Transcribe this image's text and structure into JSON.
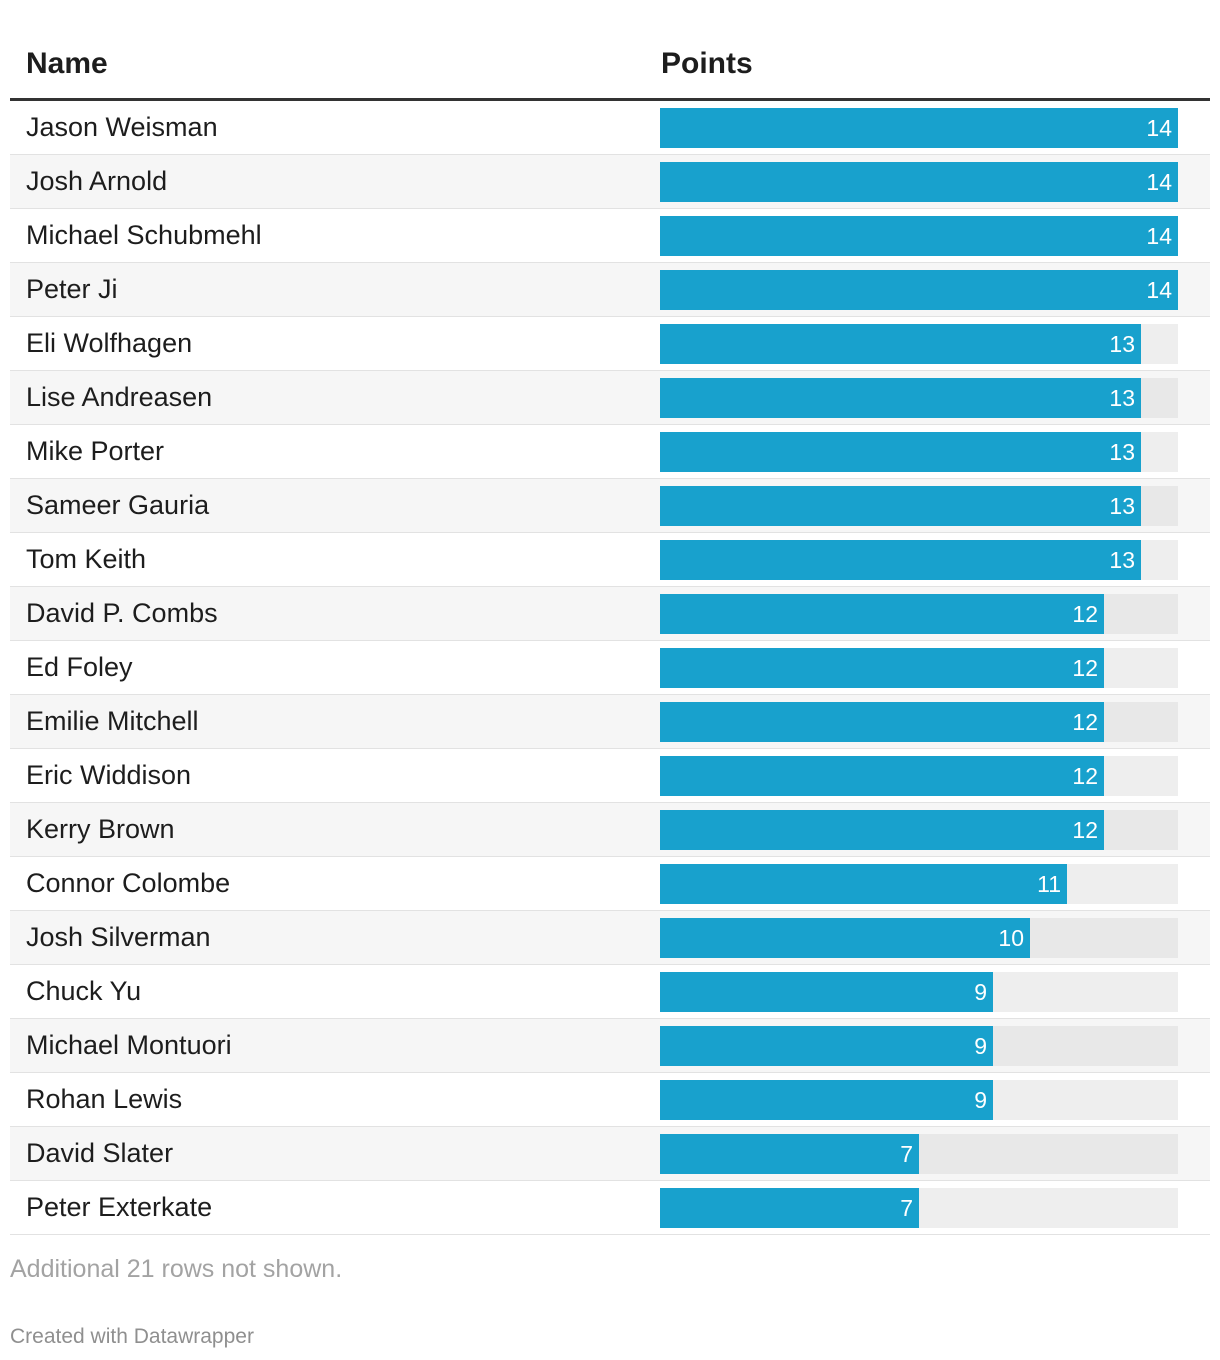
{
  "chart_data": {
    "type": "table",
    "columns": [
      "Name",
      "Points"
    ],
    "max_value": 14,
    "bar_color": "#18a1cd",
    "rows": [
      {
        "name": "Jason Weisman",
        "points": 14
      },
      {
        "name": "Josh Arnold",
        "points": 14
      },
      {
        "name": "Michael Schubmehl",
        "points": 14
      },
      {
        "name": "Peter Ji",
        "points": 14
      },
      {
        "name": "Eli Wolfhagen",
        "points": 13
      },
      {
        "name": "Lise Andreasen",
        "points": 13
      },
      {
        "name": "Mike Porter",
        "points": 13
      },
      {
        "name": "Sameer Gauria",
        "points": 13
      },
      {
        "name": "Tom Keith",
        "points": 13
      },
      {
        "name": "David P. Combs",
        "points": 12
      },
      {
        "name": "Ed Foley",
        "points": 12
      },
      {
        "name": "Emilie Mitchell",
        "points": 12
      },
      {
        "name": "Eric Widdison",
        "points": 12
      },
      {
        "name": "Kerry Brown",
        "points": 12
      },
      {
        "name": "Connor Colombe",
        "points": 11
      },
      {
        "name": "Josh Silverman",
        "points": 10
      },
      {
        "name": "Chuck Yu",
        "points": 9
      },
      {
        "name": "Michael Montuori",
        "points": 9
      },
      {
        "name": "Rohan Lewis",
        "points": 9
      },
      {
        "name": "David Slater",
        "points": 7
      },
      {
        "name": "Peter Exterkate",
        "points": 7
      }
    ]
  },
  "footer": {
    "note": "Additional 21 rows not shown.",
    "credit": "Created with Datawrapper"
  }
}
